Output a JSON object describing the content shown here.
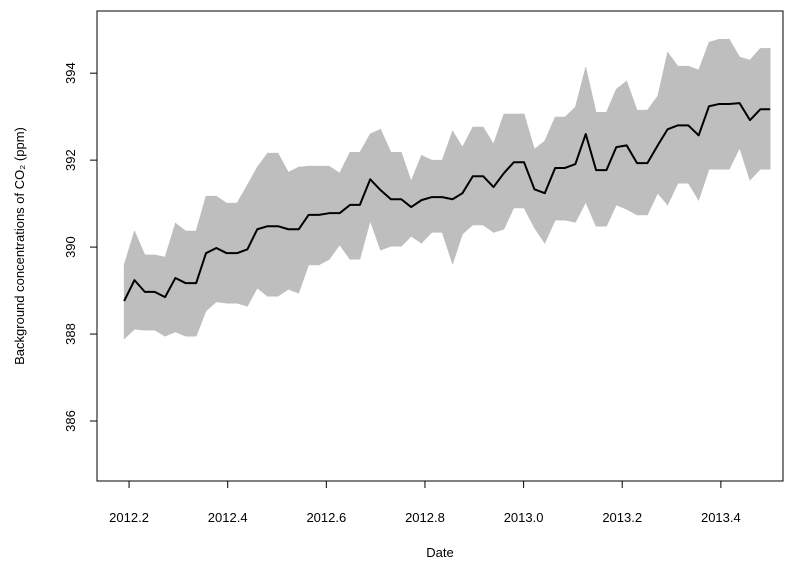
{
  "chart_data": {
    "type": "line",
    "xlabel": "Date",
    "ylabel": "Background concentrations of CO₂ (ppm)",
    "x": [
      2012.19,
      2012.211,
      2012.232,
      2012.252,
      2012.273,
      2012.294,
      2012.315,
      2012.336,
      2012.356,
      2012.377,
      2012.398,
      2012.419,
      2012.44,
      2012.46,
      2012.481,
      2012.502,
      2012.523,
      2012.544,
      2012.564,
      2012.585,
      2012.606,
      2012.627,
      2012.648,
      2012.668,
      2012.689,
      2012.71,
      2012.731,
      2012.752,
      2012.772,
      2012.793,
      2012.814,
      2012.835,
      2012.856,
      2012.876,
      2012.897,
      2012.918,
      2012.939,
      2012.96,
      2012.98,
      2013.001,
      2013.022,
      2013.043,
      2013.064,
      2013.084,
      2013.105,
      2013.126,
      2013.147,
      2013.168,
      2013.188,
      2013.209,
      2013.23,
      2013.251,
      2013.272,
      2013.292,
      2013.313,
      2013.334,
      2013.355,
      2013.376,
      2013.396,
      2013.417,
      2013.438,
      2013.459,
      2013.48,
      2013.5
    ],
    "values": [
      388.76,
      389.24,
      388.97,
      388.97,
      388.85,
      389.29,
      389.17,
      389.17,
      389.86,
      389.98,
      389.86,
      389.86,
      389.95,
      390.41,
      390.48,
      390.48,
      390.41,
      390.41,
      390.74,
      390.74,
      390.78,
      390.78,
      390.97,
      390.97,
      391.56,
      391.31,
      391.1,
      391.1,
      390.92,
      391.08,
      391.15,
      391.15,
      391.1,
      391.24,
      391.63,
      391.63,
      391.38,
      391.7,
      391.95,
      391.95,
      391.33,
      391.24,
      391.82,
      391.82,
      391.91,
      392.6,
      391.77,
      391.77,
      392.3,
      392.34,
      391.93,
      391.93,
      392.34,
      392.71,
      392.8,
      392.8,
      392.57,
      393.24,
      393.29,
      393.29,
      393.31,
      392.92,
      393.17,
      393.17
    ],
    "color": "#000000",
    "band": {
      "color": "#bebebe",
      "upper": [
        389.59,
        390.37,
        389.82,
        389.82,
        389.77,
        390.55,
        390.37,
        390.37,
        391.17,
        391.17,
        391.01,
        391.01,
        391.43,
        391.84,
        392.16,
        392.16,
        391.72,
        391.84,
        391.86,
        391.86,
        391.86,
        391.7,
        392.18,
        392.18,
        392.6,
        392.71,
        392.18,
        392.18,
        391.52,
        392.11,
        392.0,
        392.0,
        392.67,
        392.3,
        392.76,
        392.76,
        392.37,
        393.06,
        393.06,
        393.06,
        392.25,
        392.44,
        392.99,
        392.99,
        393.22,
        394.14,
        393.1,
        393.1,
        393.63,
        393.82,
        393.15,
        393.15,
        393.47,
        394.48,
        394.16,
        394.16,
        394.07,
        394.71,
        394.78,
        394.78,
        394.37,
        394.3,
        394.57,
        394.57
      ],
      "lower": [
        387.89,
        388.11,
        388.09,
        388.09,
        387.95,
        388.05,
        387.95,
        387.95,
        388.53,
        388.74,
        388.71,
        388.71,
        388.64,
        389.06,
        388.87,
        388.87,
        389.03,
        388.94,
        389.59,
        389.59,
        389.72,
        390.05,
        389.72,
        389.72,
        390.6,
        389.93,
        390.02,
        390.02,
        390.25,
        390.09,
        390.34,
        390.34,
        389.61,
        390.3,
        390.51,
        390.51,
        390.34,
        390.41,
        390.9,
        390.9,
        390.44,
        390.09,
        390.62,
        390.62,
        390.57,
        391.03,
        390.48,
        390.48,
        390.97,
        390.87,
        390.74,
        390.74,
        391.24,
        390.97,
        391.47,
        391.47,
        391.08,
        391.79,
        391.79,
        391.79,
        392.28,
        391.54,
        391.79,
        391.79
      ]
    },
    "xlim": [
      2012.135,
      2013.526
    ],
    "ylim": [
      384.62,
      395.43
    ],
    "xticks": [
      2012.2,
      2012.4,
      2012.6,
      2012.8,
      {
        "value": 2013.0,
        "label": "2013.0"
      },
      2013.2,
      2013.4
    ],
    "yticks": [
      386,
      388,
      390,
      392,
      394
    ]
  }
}
